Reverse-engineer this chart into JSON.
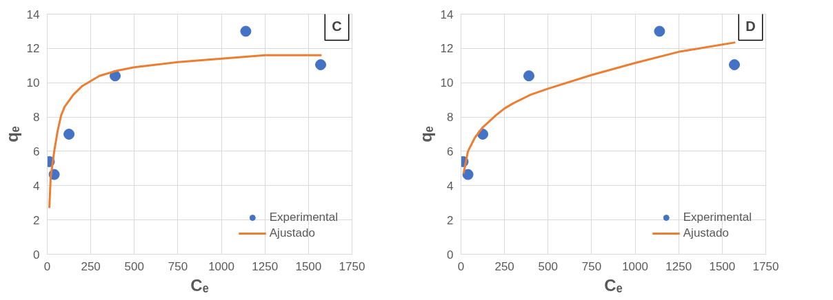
{
  "chart_data": [
    {
      "type": "scatter",
      "annotations": [
        "C"
      ],
      "xlabel": "Cₑ",
      "ylabel": "qₑ",
      "xlim": [
        0,
        1750
      ],
      "xticks": [
        0,
        250,
        500,
        750,
        1000,
        1250,
        1500,
        1750
      ],
      "ylim": [
        0,
        14
      ],
      "yticks": [
        0,
        2,
        4,
        6,
        8,
        10,
        12,
        14
      ],
      "grid": true,
      "legend": "bottom right",
      "series": [
        {
          "name": "Experimental",
          "marker": "circle",
          "color": "#4472c4",
          "x": [
            12,
            40,
            125,
            390,
            1140,
            1570
          ],
          "values": [
            5.4,
            4.65,
            7.0,
            10.4,
            13.0,
            11.05
          ]
        },
        {
          "name": "Ajustado",
          "type": "line",
          "marker": "none",
          "color": "#ed7d31",
          "line_style": "solid",
          "x": [
            12,
            20,
            40,
            60,
            80,
            100,
            150,
            200,
            250,
            300,
            400,
            500,
            750,
            1000,
            1250,
            1575
          ],
          "values": [
            2.7,
            4.5,
            6.0,
            7.2,
            8.1,
            8.6,
            9.3,
            9.8,
            10.1,
            10.4,
            10.7,
            10.9,
            11.2,
            11.4,
            11.6,
            11.6
          ]
        }
      ]
    },
    {
      "type": "scatter",
      "annotations": [
        "D"
      ],
      "xlabel": "Cₑ",
      "ylabel": "qₑ",
      "xlim": [
        0,
        1750
      ],
      "xticks": [
        0,
        250,
        500,
        750,
        1000,
        1250,
        1500,
        1750
      ],
      "ylim": [
        0,
        14
      ],
      "yticks": [
        0,
        2,
        4,
        6,
        8,
        10,
        12,
        14
      ],
      "grid": true,
      "legend": "bottom right",
      "series": [
        {
          "name": "Experimental",
          "marker": "circle",
          "color": "#4472c4",
          "x": [
            12,
            40,
            125,
            390,
            1140,
            1570
          ],
          "values": [
            5.4,
            4.65,
            7.0,
            10.4,
            13.0,
            11.05
          ]
        },
        {
          "name": "Ajustado",
          "type": "line",
          "marker": "none",
          "color": "#ed7d31",
          "line_style": "solid",
          "x": [
            15,
            40,
            80,
            125,
            200,
            250,
            300,
            400,
            500,
            750,
            1000,
            1250,
            1575
          ],
          "values": [
            4.7,
            6.0,
            6.8,
            7.4,
            8.1,
            8.5,
            8.8,
            9.3,
            9.65,
            10.45,
            11.15,
            11.8,
            12.35
          ]
        }
      ]
    }
  ]
}
